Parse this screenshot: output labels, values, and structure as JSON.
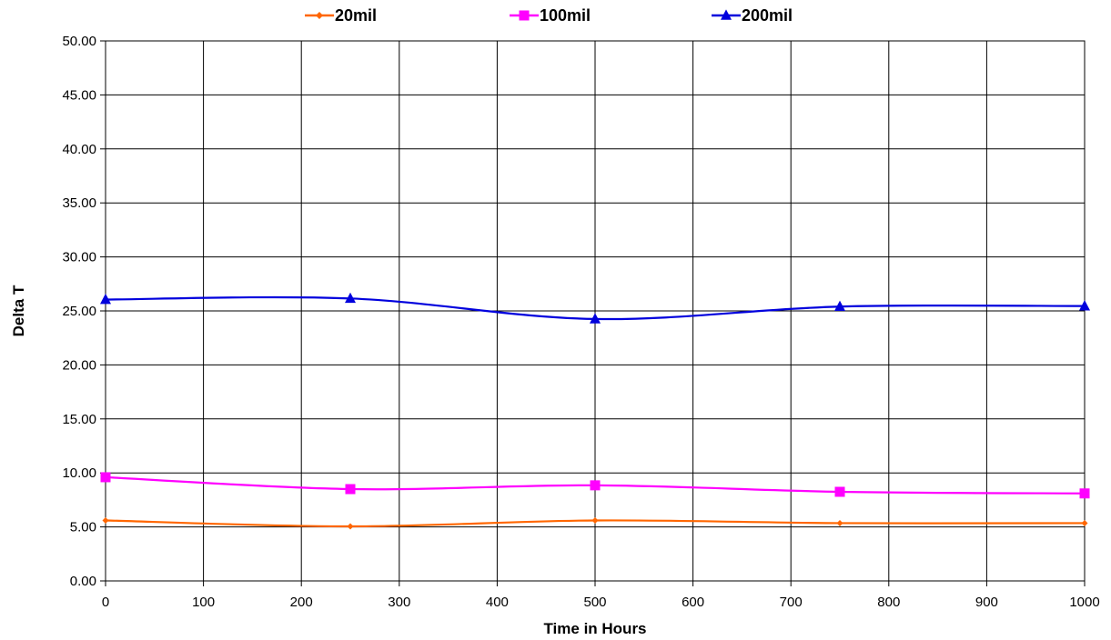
{
  "chart_data": {
    "type": "line",
    "xlabel": "Time in Hours",
    "ylabel": "Delta T",
    "xlim": [
      0,
      1000
    ],
    "ylim": [
      0,
      50
    ],
    "x_ticks": [
      0,
      100,
      200,
      300,
      400,
      500,
      600,
      700,
      800,
      900,
      1000
    ],
    "y_ticks": [
      0,
      5,
      10,
      15,
      20,
      25,
      30,
      35,
      40,
      45,
      50
    ],
    "y_tick_labels": [
      "0.00",
      "5.00",
      "10.00",
      "15.00",
      "20.00",
      "25.00",
      "30.00",
      "35.00",
      "40.00",
      "45.00",
      "50.00"
    ],
    "x_tick_labels": [
      "0",
      "100",
      "200",
      "300",
      "400",
      "500",
      "600",
      "700",
      "800",
      "900",
      "1000"
    ],
    "grid": true,
    "legend_position": "top",
    "smooth": true,
    "x": [
      0,
      250,
      500,
      750,
      1000
    ],
    "series": [
      {
        "name": "20mil",
        "values": [
          5.6,
          5.05,
          5.6,
          5.35,
          5.35
        ],
        "color": "#ff6600",
        "marker": "diamond"
      },
      {
        "name": "100mil",
        "values": [
          9.6,
          8.5,
          8.85,
          8.25,
          8.1
        ],
        "color": "#ff00ff",
        "marker": "square"
      },
      {
        "name": "200mil",
        "values": [
          26.05,
          26.15,
          24.25,
          25.4,
          25.45
        ],
        "color": "#0000dd",
        "marker": "triangle"
      }
    ]
  }
}
